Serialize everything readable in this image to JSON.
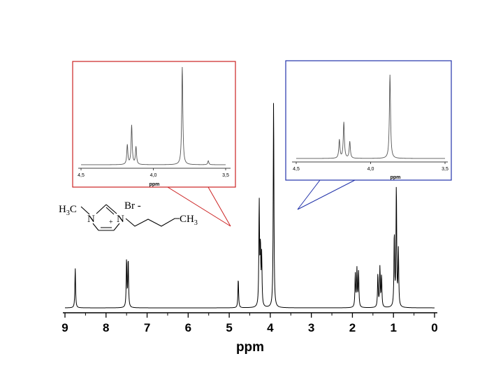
{
  "chart_data": [
    {
      "type": "line",
      "title": "",
      "xlabel": "ppm",
      "ylabel": "",
      "xlim": [
        9,
        0
      ],
      "x_reversed": true,
      "xticks": [
        "9",
        "8",
        "7",
        "6",
        "5",
        "4",
        "3",
        "2",
        "1",
        "0"
      ],
      "series": [
        {
          "peaks": [
            {
              "ppm": 8.75,
              "height": 0.19
            },
            {
              "ppm": 7.5,
              "height": 0.23
            },
            {
              "ppm": 7.46,
              "height": 0.23
            },
            {
              "ppm": 4.78,
              "height": 0.14
            },
            {
              "ppm": 4.27,
              "height": 0.5
            },
            {
              "ppm": 4.24,
              "height": 0.27
            },
            {
              "ppm": 4.21,
              "height": 0.24
            },
            {
              "ppm": 3.92,
              "height": 1.0
            },
            {
              "ppm": 1.93,
              "height": 0.16
            },
            {
              "ppm": 1.89,
              "height": 0.18
            },
            {
              "ppm": 1.85,
              "height": 0.17
            },
            {
              "ppm": 1.38,
              "height": 0.16
            },
            {
              "ppm": 1.33,
              "height": 0.19
            },
            {
              "ppm": 1.29,
              "height": 0.15
            },
            {
              "ppm": 0.98,
              "height": 0.35
            },
            {
              "ppm": 0.93,
              "height": 0.58
            },
            {
              "ppm": 0.88,
              "height": 0.27
            }
          ]
        }
      ]
    },
    {
      "type": "line",
      "xlabel": "ppm",
      "xlim": [
        4.5,
        3.5
      ],
      "xticks": [
        "4,5",
        "4,0",
        "3,5"
      ],
      "frame_color": "#cc2222",
      "series": [
        {
          "peaks": [
            {
              "ppm": 4.18,
              "height": 0.2
            },
            {
              "ppm": 4.15,
              "height": 0.4
            },
            {
              "ppm": 4.12,
              "height": 0.18
            },
            {
              "ppm": 3.8,
              "height": 1.0
            },
            {
              "ppm": 3.62,
              "height": 0.04
            }
          ]
        }
      ]
    },
    {
      "type": "line",
      "xlabel": "ppm",
      "xlim": [
        4.5,
        3.5
      ],
      "xticks": [
        "4,5",
        "4,0",
        "3,5"
      ],
      "frame_color": "#2233aa",
      "series": [
        {
          "peaks": [
            {
              "ppm": 4.21,
              "height": 0.22
            },
            {
              "ppm": 4.18,
              "height": 0.43
            },
            {
              "ppm": 4.14,
              "height": 0.2
            },
            {
              "ppm": 3.87,
              "height": 1.0
            }
          ]
        }
      ]
    }
  ],
  "structure": {
    "h3c": "H",
    "h3c_sub": "3",
    "h3c_c": "C",
    "n1": "N",
    "n2": "N",
    "plus": "+",
    "anion": "Br",
    "anion_charge": "-",
    "ch3": "CH",
    "ch3_sub": "3"
  }
}
